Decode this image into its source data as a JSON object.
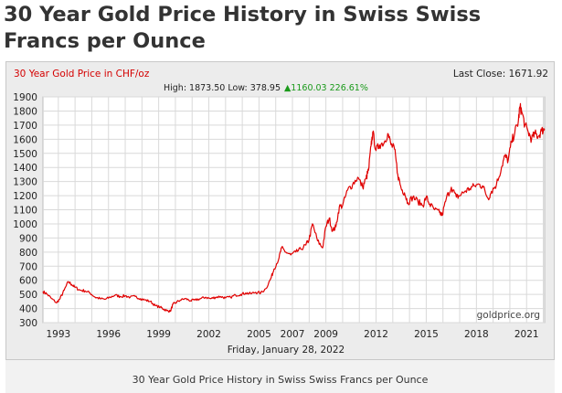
{
  "page": {
    "heading": "30 Year Gold Price History in Swiss Swiss Francs per Ounce",
    "caption": "30 Year Gold Price History in Swiss Swiss Francs per Ounce"
  },
  "chart_data": {
    "type": "line",
    "title": "30 Year Gold Price in CHF/oz",
    "last_close_label": "Last Close: 1671.92",
    "stats": {
      "high_low": "High: 1873.50 Low: 378.95",
      "change": "▲1160.03 226.61%"
    },
    "watermark": "goldprice.org",
    "date_label": "Friday, January 28, 2022",
    "xlabel": "",
    "ylabel": "",
    "x_range": [
      1992.08,
      2022.08
    ],
    "ylim": [
      300,
      1900
    ],
    "y_ticks": [
      300,
      400,
      500,
      600,
      700,
      800,
      900,
      1000,
      1100,
      1200,
      1300,
      1400,
      1500,
      1600,
      1700,
      1800,
      1900
    ],
    "x_ticks": [
      {
        "label": "1993",
        "x": 1993
      },
      {
        "label": "1996",
        "x": 1996
      },
      {
        "label": "1999",
        "x": 1999
      },
      {
        "label": "2002",
        "x": 2002
      },
      {
        "label": "2005",
        "x": 2005
      },
      {
        "label": "2007",
        "x": 2007
      },
      {
        "label": "2009",
        "x": 2009
      },
      {
        "label": "2012",
        "x": 2012
      },
      {
        "label": "2015",
        "x": 2015
      },
      {
        "label": "2018",
        "x": 2018
      },
      {
        "label": "2021",
        "x": 2021
      }
    ],
    "grid": true,
    "series": [
      {
        "color": "#e00000",
        "points": [
          [
            1992.08,
            520
          ],
          [
            1992.3,
            505
          ],
          [
            1992.6,
            470
          ],
          [
            1992.9,
            440
          ],
          [
            1993.1,
            470
          ],
          [
            1993.35,
            530
          ],
          [
            1993.6,
            590
          ],
          [
            1993.8,
            570
          ],
          [
            1994.0,
            550
          ],
          [
            1994.3,
            530
          ],
          [
            1994.6,
            525
          ],
          [
            1994.9,
            510
          ],
          [
            1995.2,
            480
          ],
          [
            1995.5,
            470
          ],
          [
            1995.8,
            465
          ],
          [
            1996.1,
            480
          ],
          [
            1996.4,
            495
          ],
          [
            1996.7,
            485
          ],
          [
            1997.0,
            490
          ],
          [
            1997.3,
            480
          ],
          [
            1997.6,
            485
          ],
          [
            1997.9,
            470
          ],
          [
            1998.2,
            460
          ],
          [
            1998.5,
            450
          ],
          [
            1998.8,
            420
          ],
          [
            1999.1,
            410
          ],
          [
            1999.3,
            395
          ],
          [
            1999.5,
            385
          ],
          [
            1999.7,
            380
          ],
          [
            1999.85,
            430
          ],
          [
            2000.0,
            440
          ],
          [
            2000.3,
            460
          ],
          [
            2000.6,
            470
          ],
          [
            2000.9,
            455
          ],
          [
            2001.2,
            460
          ],
          [
            2001.5,
            470
          ],
          [
            2001.8,
            480
          ],
          [
            2002.1,
            470
          ],
          [
            2002.4,
            480
          ],
          [
            2002.7,
            485
          ],
          [
            2003.0,
            475
          ],
          [
            2003.3,
            480
          ],
          [
            2003.6,
            495
          ],
          [
            2003.9,
            500
          ],
          [
            2004.2,
            510
          ],
          [
            2004.5,
            505
          ],
          [
            2004.8,
            515
          ],
          [
            2005.1,
            510
          ],
          [
            2005.4,
            540
          ],
          [
            2005.7,
            610
          ],
          [
            2005.9,
            680
          ],
          [
            2006.2,
            760
          ],
          [
            2006.35,
            830
          ],
          [
            2006.6,
            800
          ],
          [
            2006.9,
            780
          ],
          [
            2007.2,
            800
          ],
          [
            2007.5,
            820
          ],
          [
            2007.8,
            850
          ],
          [
            2008.0,
            890
          ],
          [
            2008.2,
            1000
          ],
          [
            2008.5,
            880
          ],
          [
            2008.8,
            830
          ],
          [
            2009.0,
            980
          ],
          [
            2009.2,
            1040
          ],
          [
            2009.4,
            950
          ],
          [
            2009.6,
            980
          ],
          [
            2009.8,
            1120
          ],
          [
            2010.0,
            1130
          ],
          [
            2010.3,
            1240
          ],
          [
            2010.6,
            1280
          ],
          [
            2010.9,
            1330
          ],
          [
            2011.2,
            1260
          ],
          [
            2011.4,
            1320
          ],
          [
            2011.55,
            1380
          ],
          [
            2011.7,
            1550
          ],
          [
            2011.8,
            1650
          ],
          [
            2012.0,
            1520
          ],
          [
            2012.2,
            1560
          ],
          [
            2012.5,
            1580
          ],
          [
            2012.7,
            1640
          ],
          [
            2012.9,
            1560
          ],
          [
            2013.1,
            1530
          ],
          [
            2013.3,
            1350
          ],
          [
            2013.5,
            1250
          ],
          [
            2013.7,
            1220
          ],
          [
            2013.9,
            1150
          ],
          [
            2014.2,
            1190
          ],
          [
            2014.5,
            1160
          ],
          [
            2014.8,
            1130
          ],
          [
            2015.0,
            1190
          ],
          [
            2015.2,
            1140
          ],
          [
            2015.5,
            1100
          ],
          [
            2015.8,
            1080
          ],
          [
            2015.95,
            1060
          ],
          [
            2016.2,
            1180
          ],
          [
            2016.5,
            1260
          ],
          [
            2016.8,
            1190
          ],
          [
            2017.0,
            1200
          ],
          [
            2017.3,
            1230
          ],
          [
            2017.6,
            1250
          ],
          [
            2017.9,
            1270
          ],
          [
            2018.2,
            1280
          ],
          [
            2018.4,
            1260
          ],
          [
            2018.7,
            1180
          ],
          [
            2018.9,
            1230
          ],
          [
            2019.2,
            1280
          ],
          [
            2019.5,
            1400
          ],
          [
            2019.7,
            1480
          ],
          [
            2019.9,
            1450
          ],
          [
            2020.1,
            1580
          ],
          [
            2020.3,
            1650
          ],
          [
            2020.5,
            1720
          ],
          [
            2020.6,
            1830
          ],
          [
            2020.7,
            1800
          ],
          [
            2020.9,
            1700
          ],
          [
            2021.1,
            1650
          ],
          [
            2021.3,
            1600
          ],
          [
            2021.5,
            1640
          ],
          [
            2021.7,
            1620
          ],
          [
            2021.9,
            1660
          ],
          [
            2022.08,
            1671.92
          ]
        ]
      }
    ]
  }
}
